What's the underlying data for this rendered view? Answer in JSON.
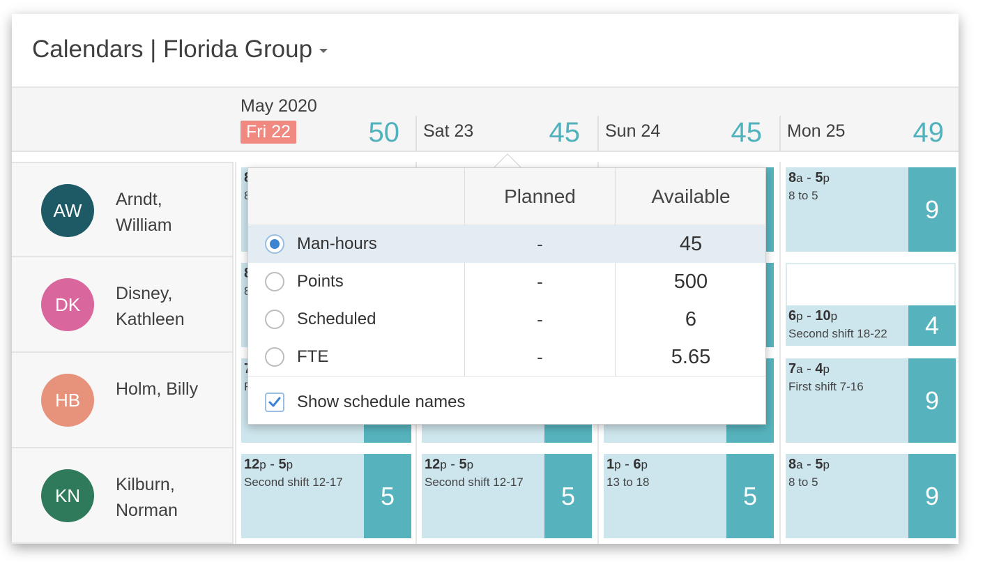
{
  "header": {
    "title": "Calendars | Florida Group"
  },
  "calendar": {
    "month": "May 2020",
    "days": [
      {
        "label": "Fri 22",
        "total": "50",
        "today": true
      },
      {
        "label": "Sat 23",
        "total": "45",
        "today": false
      },
      {
        "label": "Sun 24",
        "total": "45",
        "today": false
      },
      {
        "label": "Mon 25",
        "total": "49",
        "today": false
      }
    ]
  },
  "people": [
    {
      "initials": "AW",
      "name_line1": "Arndt,",
      "name_line2": "William",
      "color": "#1e5a66"
    },
    {
      "initials": "DK",
      "name_line1": "Disney,",
      "name_line2": "Kathleen",
      "color": "#d9679e"
    },
    {
      "initials": "HB",
      "name_line1": "Holm, Billy",
      "name_line2": "",
      "color": "#e7927a"
    },
    {
      "initials": "KN",
      "name_line1": "Kilburn,",
      "name_line2": "Norman",
      "color": "#2f7a5a"
    }
  ],
  "shifts": {
    "mon_arndt": {
      "start": "8",
      "start_s": "a",
      "end": "5",
      "end_s": "p",
      "schedule": "8 to 5",
      "hours": "9"
    },
    "mon_disney": {
      "start": "6",
      "start_s": "p",
      "end": "10",
      "end_s": "p",
      "schedule": "Second shift 18-22",
      "hours": "4"
    },
    "mon_holm": {
      "start": "7",
      "start_s": "a",
      "end": "4",
      "end_s": "p",
      "schedule": "First shift 7-16",
      "hours": "9"
    },
    "fri_kilburn": {
      "start": "12",
      "start_s": "p",
      "end": "5",
      "end_s": "p",
      "schedule": "Second shift 12-17",
      "hours": "5"
    },
    "sat_kilburn": {
      "start": "12",
      "start_s": "p",
      "end": "5",
      "end_s": "p",
      "schedule": "Second shift 12-17",
      "hours": "5"
    },
    "sun_kilburn": {
      "start": "1",
      "start_s": "p",
      "end": "6",
      "end_s": "p",
      "schedule": "13 to 18",
      "hours": "5"
    },
    "mon_kilburn": {
      "start": "8",
      "start_s": "a",
      "end": "5",
      "end_s": "p",
      "schedule": "8 to 5",
      "hours": "9"
    },
    "hidden_prefix": {
      "fri_arndt": "8",
      "fri_arndt_sub": "8",
      "fri_disney": "8",
      "fri_disney_sub": "8",
      "fri_holm": "7",
      "fri_holm_sub": "F"
    }
  },
  "popover": {
    "col_planned": "Planned",
    "col_available": "Available",
    "rows": [
      {
        "label": "Man-hours",
        "planned": "-",
        "available": "45",
        "selected": true
      },
      {
        "label": "Points",
        "planned": "-",
        "available": "500",
        "selected": false
      },
      {
        "label": "Scheduled",
        "planned": "-",
        "available": "6",
        "selected": false
      },
      {
        "label": "FTE",
        "planned": "-",
        "available": "5.65",
        "selected": false
      }
    ],
    "show_schedule_names_label": "Show schedule names",
    "show_schedule_names_checked": true
  }
}
